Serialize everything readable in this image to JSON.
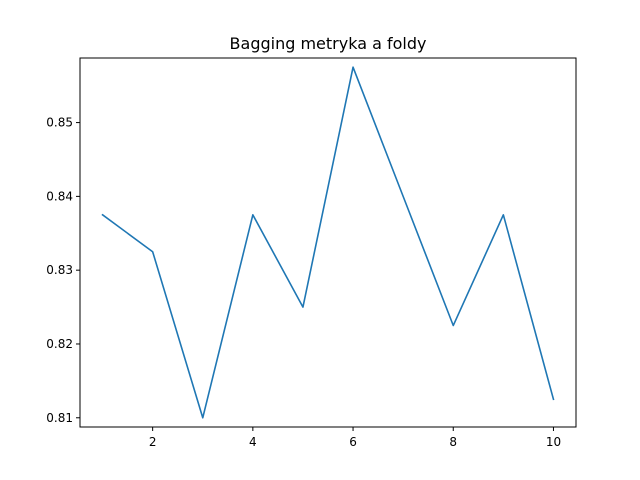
{
  "chart_data": {
    "type": "line",
    "title": "Bagging metryka a foldy",
    "xlabel": "",
    "ylabel": "",
    "x": [
      1,
      2,
      3,
      4,
      5,
      6,
      7,
      8,
      9,
      10
    ],
    "series": [
      {
        "values": [
          0.8375,
          0.8325,
          0.81,
          0.8375,
          0.825,
          0.8575,
          0.84,
          0.8225,
          0.8375,
          0.8125
        ],
        "color": "#1f77b4"
      }
    ],
    "xlim": [
      0.55,
      10.45
    ],
    "ylim": [
      0.80875,
      0.85875
    ],
    "xticks": [
      2,
      4,
      6,
      8,
      10
    ],
    "xtick_labels": [
      "2",
      "4",
      "6",
      "8",
      "10"
    ],
    "yticks": [
      0.81,
      0.82,
      0.83,
      0.84,
      0.85
    ],
    "ytick_labels": [
      "0.81",
      "0.82",
      "0.83",
      "0.84",
      "0.85"
    ],
    "grid": false,
    "legend": "none"
  }
}
